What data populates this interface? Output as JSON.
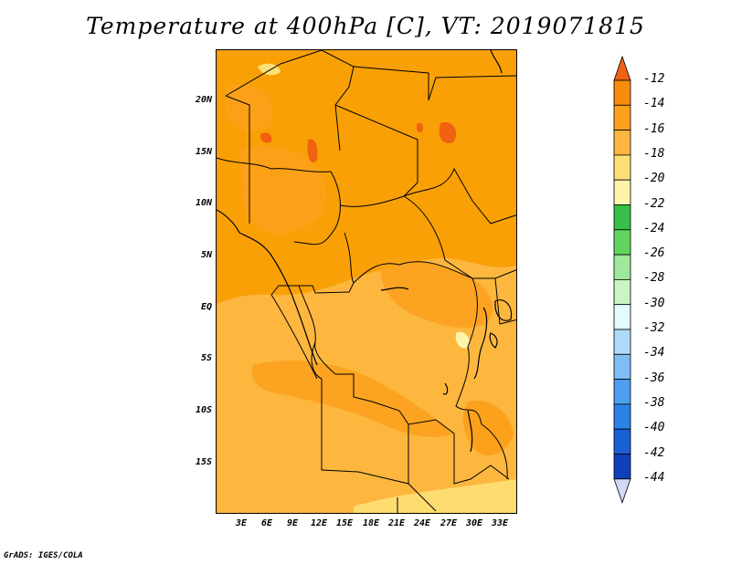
{
  "title": "Temperature at 400hPa [C], VT: 2019071815",
  "credit": "GrADS: IGES/COLA",
  "map": {
    "lat_labels": [
      "20N",
      "15N",
      "10N",
      "5N",
      "EQ",
      "5S",
      "10S",
      "15S"
    ],
    "lon_labels": [
      "3E",
      "6E",
      "9E",
      "12E",
      "15E",
      "18E",
      "21E",
      "24E",
      "27E",
      "30E",
      "33E"
    ]
  },
  "colorbar": {
    "labels": [
      "-12",
      "-14",
      "-16",
      "-18",
      "-20",
      "-22",
      "-24",
      "-26",
      "-28",
      "-30",
      "-32",
      "-34",
      "-36",
      "-38",
      "-40",
      "-42",
      "-44"
    ],
    "colors": [
      "#f0620f",
      "#f88c0c",
      "#fca11c",
      "#fdb73f",
      "#fde075",
      "#fef4ac",
      "#37c047",
      "#60d661",
      "#9ee89b",
      "#c8f5c2",
      "#e2fbfd",
      "#afdaf9",
      "#7fbdf5",
      "#4e9df0",
      "#2b81e7",
      "#1b5fd6",
      "#1040b7",
      "#0c1f7a",
      "#d3d8f6"
    ]
  }
}
